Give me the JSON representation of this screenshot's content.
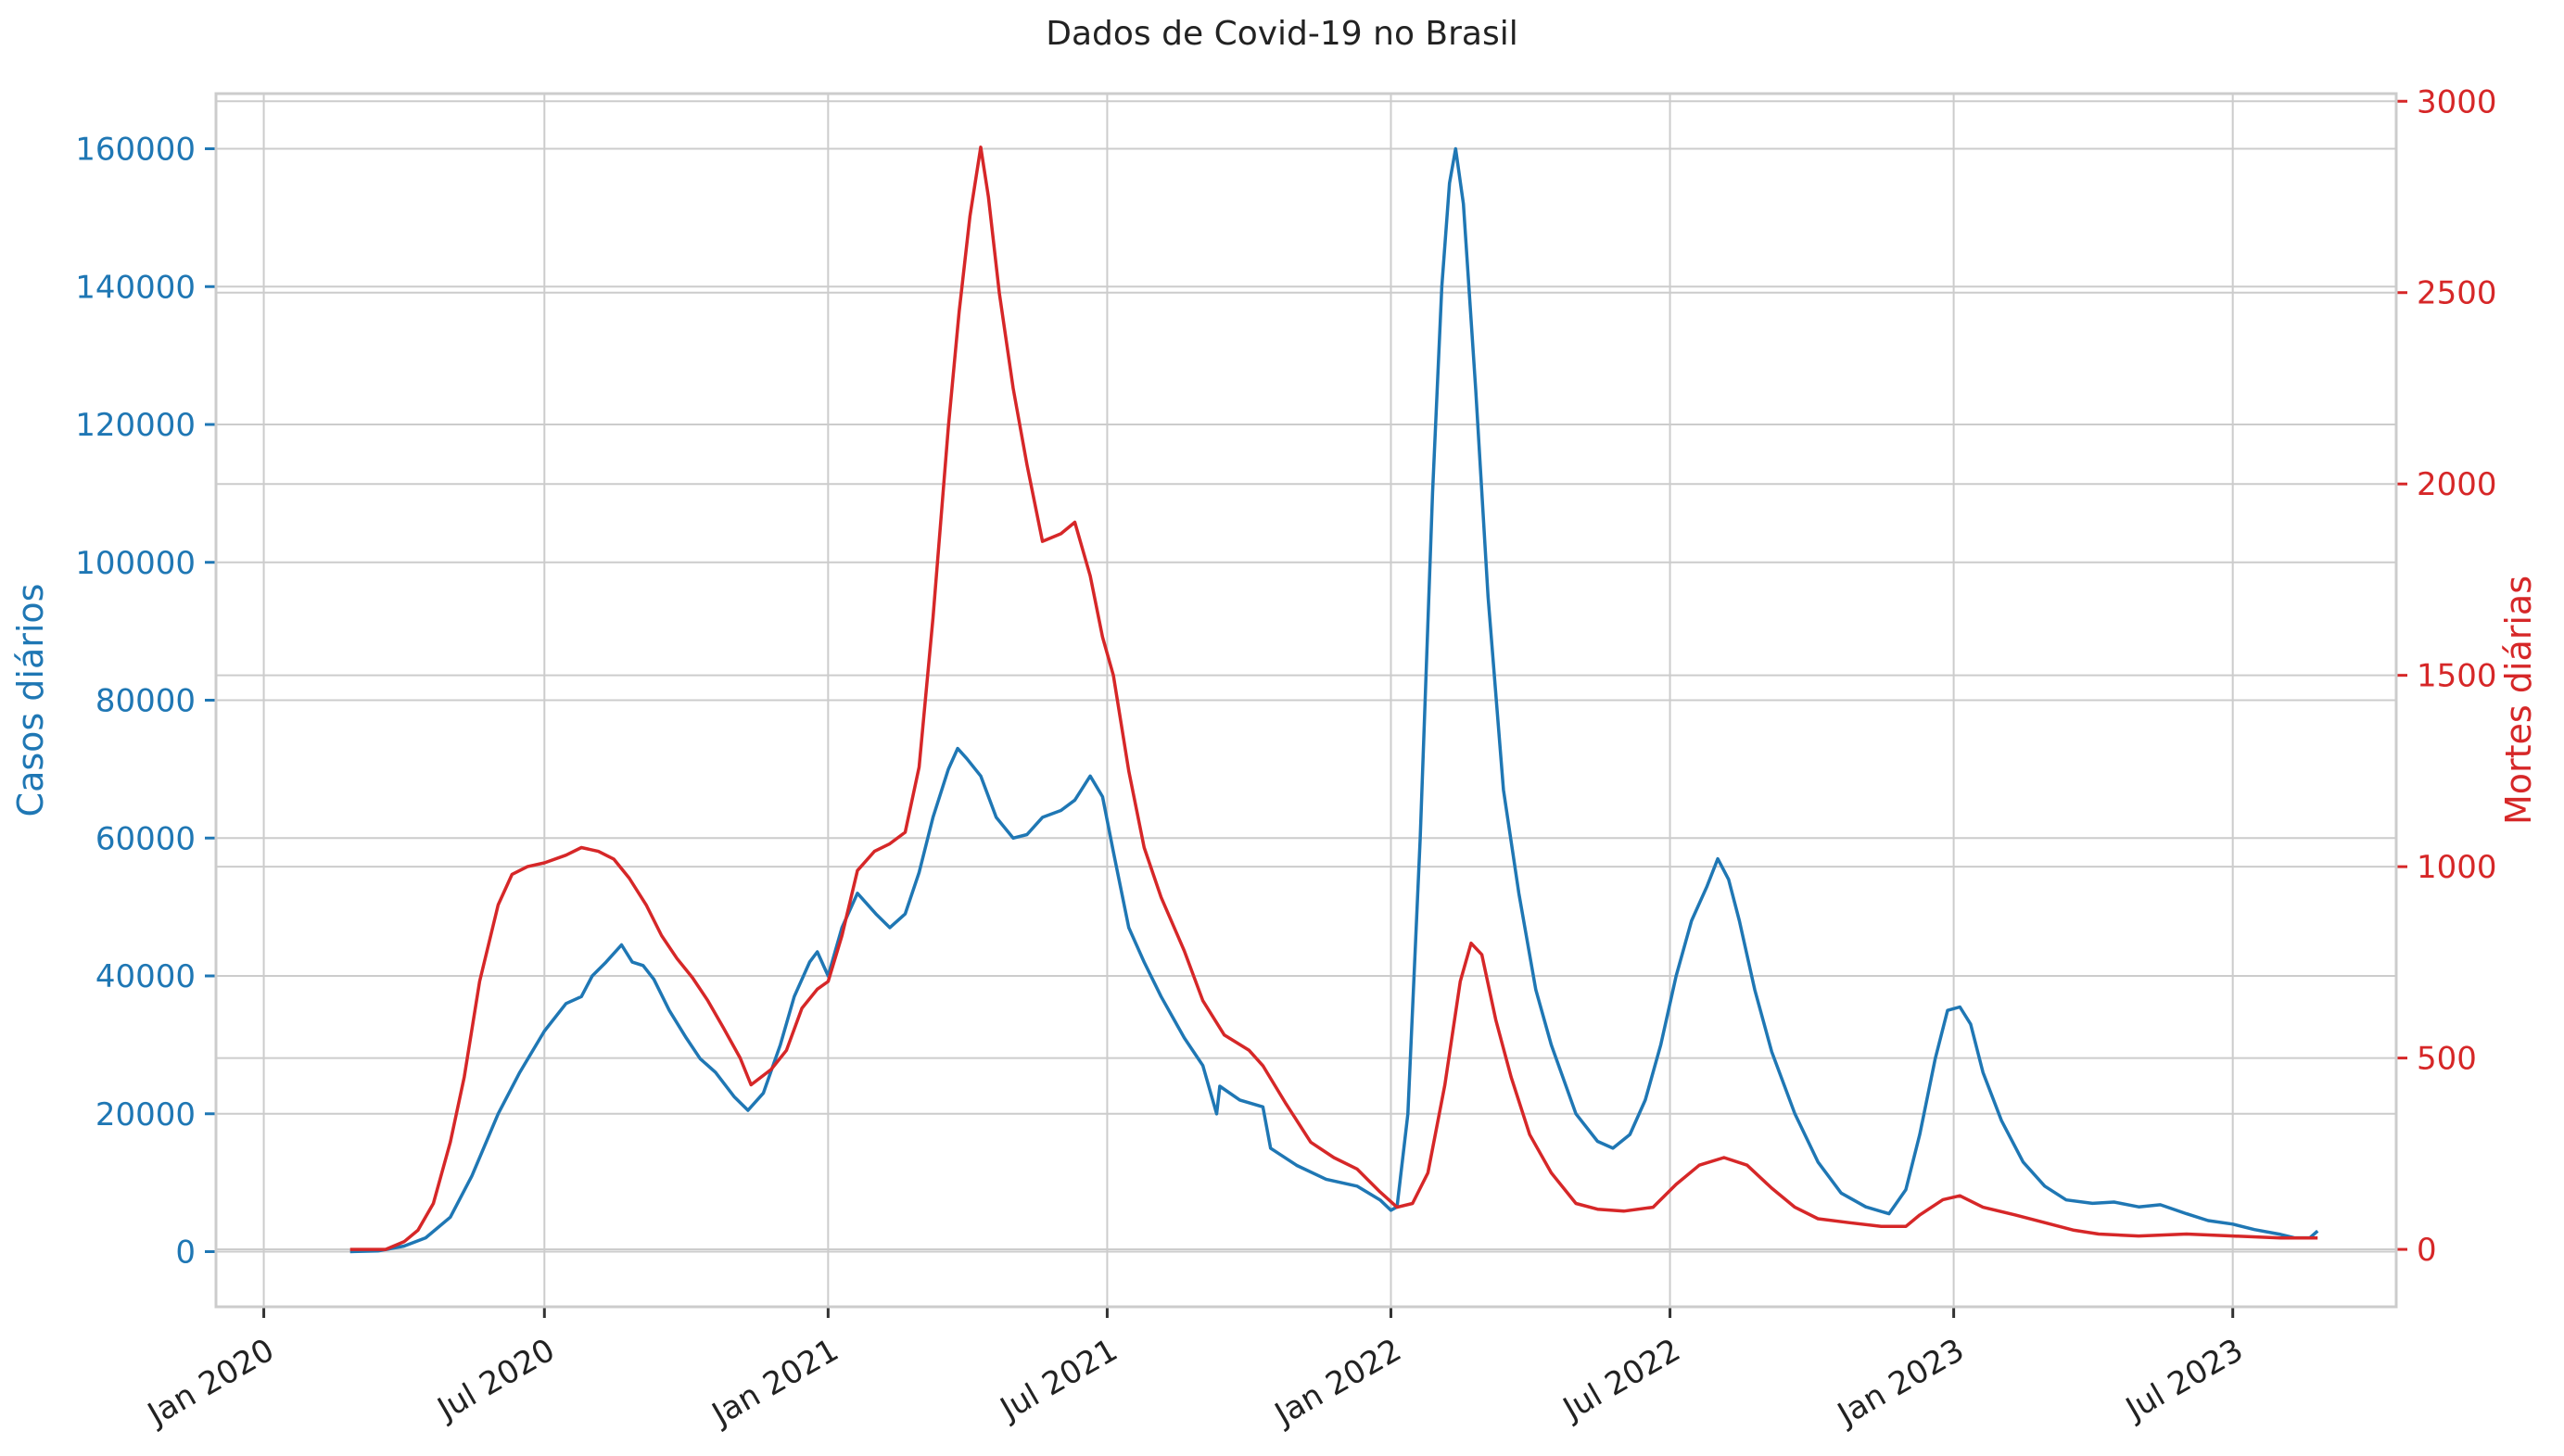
{
  "chart_data": {
    "type": "line",
    "title": "Dados de Covid-19 no Brasil",
    "x_ticks": [
      "Jan 2020",
      "Jul 2020",
      "Jan 2021",
      "Jul 2021",
      "Jan 2022",
      "Jul 2022",
      "Jan 2023",
      "Jul 2023"
    ],
    "y_left": {
      "label": "Casos diários",
      "ticks": [
        "0",
        "20000",
        "40000",
        "60000",
        "80000",
        "100000",
        "120000",
        "140000",
        "160000"
      ],
      "range": [
        -8000,
        168000
      ],
      "color": "#1f77b4"
    },
    "y_right": {
      "label": "Mortes diárias",
      "ticks": [
        "0",
        "500",
        "1000",
        "1500",
        "2000",
        "2500",
        "3000"
      ],
      "range": [
        -150,
        3020
      ],
      "color": "#d62728"
    },
    "x_range": [
      "2019-12-01",
      "2023-10-15"
    ],
    "grid": true,
    "series": [
      {
        "name": "Casos diários",
        "axis": "left",
        "color": "#1f77b4",
        "points": [
          [
            "2020-02-26",
            0
          ],
          [
            "2020-03-15",
            100
          ],
          [
            "2020-04-01",
            800
          ],
          [
            "2020-04-15",
            2000
          ],
          [
            "2020-05-01",
            5000
          ],
          [
            "2020-05-15",
            11000
          ],
          [
            "2020-06-01",
            20000
          ],
          [
            "2020-06-15",
            26000
          ],
          [
            "2020-07-01",
            32000
          ],
          [
            "2020-07-15",
            36000
          ],
          [
            "2020-07-25",
            37000
          ],
          [
            "2020-08-01",
            40000
          ],
          [
            "2020-08-10",
            42000
          ],
          [
            "2020-08-20",
            44500
          ],
          [
            "2020-08-27",
            42000
          ],
          [
            "2020-09-03",
            41500
          ],
          [
            "2020-09-10",
            39500
          ],
          [
            "2020-09-20",
            35000
          ],
          [
            "2020-10-01",
            31000
          ],
          [
            "2020-10-10",
            28000
          ],
          [
            "2020-10-20",
            26000
          ],
          [
            "2020-11-01",
            22500
          ],
          [
            "2020-11-10",
            20500
          ],
          [
            "2020-11-20",
            23000
          ],
          [
            "2020-12-01",
            30000
          ],
          [
            "2020-12-10",
            37000
          ],
          [
            "2020-12-20",
            42000
          ],
          [
            "2020-12-25",
            43500
          ],
          [
            "2021-01-01",
            40000
          ],
          [
            "2021-01-10",
            47000
          ],
          [
            "2021-01-20",
            52000
          ],
          [
            "2021-02-01",
            49000
          ],
          [
            "2021-02-10",
            47000
          ],
          [
            "2021-02-20",
            49000
          ],
          [
            "2021-03-01",
            55000
          ],
          [
            "2021-03-10",
            63000
          ],
          [
            "2021-03-20",
            70000
          ],
          [
            "2021-03-26",
            73000
          ],
          [
            "2021-04-01",
            71500
          ],
          [
            "2021-04-10",
            69000
          ],
          [
            "2021-04-20",
            63000
          ],
          [
            "2021-05-01",
            60000
          ],
          [
            "2021-05-10",
            60500
          ],
          [
            "2021-05-20",
            63000
          ],
          [
            "2021-06-01",
            64000
          ],
          [
            "2021-06-10",
            65500
          ],
          [
            "2021-06-20",
            69000
          ],
          [
            "2021-06-28",
            66000
          ],
          [
            "2021-07-05",
            58000
          ],
          [
            "2021-07-15",
            47000
          ],
          [
            "2021-07-25",
            42000
          ],
          [
            "2021-08-05",
            37000
          ],
          [
            "2021-08-20",
            31000
          ],
          [
            "2021-09-01",
            27000
          ],
          [
            "2021-09-10",
            20000
          ],
          [
            "2021-09-12",
            24000
          ],
          [
            "2021-09-25",
            22000
          ],
          [
            "2021-10-10",
            21000
          ],
          [
            "2021-10-15",
            15000
          ],
          [
            "2021-11-01",
            12500
          ],
          [
            "2021-11-20",
            10500
          ],
          [
            "2021-12-10",
            9500
          ],
          [
            "2021-12-25",
            7500
          ],
          [
            "2022-01-01",
            6000
          ],
          [
            "2022-01-05",
            6500
          ],
          [
            "2022-01-12",
            20000
          ],
          [
            "2022-01-20",
            60000
          ],
          [
            "2022-01-28",
            110000
          ],
          [
            "2022-02-03",
            140000
          ],
          [
            "2022-02-08",
            155000
          ],
          [
            "2022-02-12",
            160000
          ],
          [
            "2022-02-17",
            152000
          ],
          [
            "2022-02-25",
            125000
          ],
          [
            "2022-03-05",
            95000
          ],
          [
            "2022-03-15",
            67000
          ],
          [
            "2022-03-25",
            52000
          ],
          [
            "2022-04-05",
            38000
          ],
          [
            "2022-04-15",
            30000
          ],
          [
            "2022-05-01",
            20000
          ],
          [
            "2022-05-15",
            16000
          ],
          [
            "2022-05-25",
            15000
          ],
          [
            "2022-06-05",
            17000
          ],
          [
            "2022-06-15",
            22000
          ],
          [
            "2022-06-25",
            30000
          ],
          [
            "2022-07-05",
            40000
          ],
          [
            "2022-07-15",
            48000
          ],
          [
            "2022-07-25",
            53000
          ],
          [
            "2022-08-01",
            57000
          ],
          [
            "2022-08-08",
            54000
          ],
          [
            "2022-08-15",
            48000
          ],
          [
            "2022-08-25",
            38000
          ],
          [
            "2022-09-05",
            29000
          ],
          [
            "2022-09-20",
            20000
          ],
          [
            "2022-10-05",
            13000
          ],
          [
            "2022-10-20",
            8500
          ],
          [
            "2022-11-05",
            6500
          ],
          [
            "2022-11-20",
            5500
          ],
          [
            "2022-12-01",
            9000
          ],
          [
            "2022-12-10",
            17000
          ],
          [
            "2022-12-20",
            28000
          ],
          [
            "2022-12-28",
            35000
          ],
          [
            "2023-01-05",
            35500
          ],
          [
            "2023-01-12",
            33000
          ],
          [
            "2023-01-20",
            26000
          ],
          [
            "2023-02-01",
            19000
          ],
          [
            "2023-02-15",
            13000
          ],
          [
            "2023-03-01",
            9500
          ],
          [
            "2023-03-15",
            7500
          ],
          [
            "2023-04-01",
            7000
          ],
          [
            "2023-04-15",
            7200
          ],
          [
            "2023-05-01",
            6500
          ],
          [
            "2023-05-15",
            6800
          ],
          [
            "2023-06-01",
            5500
          ],
          [
            "2023-06-15",
            4500
          ],
          [
            "2023-07-01",
            4000
          ],
          [
            "2023-07-15",
            3200
          ],
          [
            "2023-08-01",
            2500
          ],
          [
            "2023-08-10",
            2000
          ],
          [
            "2023-08-20",
            2000
          ],
          [
            "2023-08-25",
            3000
          ]
        ]
      },
      {
        "name": "Mortes diárias",
        "axis": "right",
        "color": "#d62728",
        "points": [
          [
            "2020-02-26",
            0
          ],
          [
            "2020-03-20",
            0
          ],
          [
            "2020-04-01",
            20
          ],
          [
            "2020-04-10",
            50
          ],
          [
            "2020-04-20",
            120
          ],
          [
            "2020-05-01",
            280
          ],
          [
            "2020-05-10",
            450
          ],
          [
            "2020-05-20",
            700
          ],
          [
            "2020-06-01",
            900
          ],
          [
            "2020-06-10",
            980
          ],
          [
            "2020-06-20",
            1000
          ],
          [
            "2020-07-01",
            1010
          ],
          [
            "2020-07-15",
            1030
          ],
          [
            "2020-07-25",
            1050
          ],
          [
            "2020-08-05",
            1040
          ],
          [
            "2020-08-15",
            1020
          ],
          [
            "2020-08-25",
            970
          ],
          [
            "2020-09-05",
            900
          ],
          [
            "2020-09-15",
            820
          ],
          [
            "2020-09-25",
            760
          ],
          [
            "2020-10-05",
            710
          ],
          [
            "2020-10-15",
            650
          ],
          [
            "2020-10-25",
            580
          ],
          [
            "2020-11-05",
            500
          ],
          [
            "2020-11-12",
            430
          ],
          [
            "2020-11-25",
            470
          ],
          [
            "2020-12-05",
            520
          ],
          [
            "2020-12-15",
            630
          ],
          [
            "2020-12-25",
            680
          ],
          [
            "2021-01-01",
            700
          ],
          [
            "2021-01-10",
            820
          ],
          [
            "2021-01-20",
            990
          ],
          [
            "2021-01-31",
            1040
          ],
          [
            "2021-02-10",
            1060
          ],
          [
            "2021-02-20",
            1090
          ],
          [
            "2021-03-01",
            1260
          ],
          [
            "2021-03-10",
            1650
          ],
          [
            "2021-03-20",
            2150
          ],
          [
            "2021-03-27",
            2450
          ],
          [
            "2021-04-03",
            2700
          ],
          [
            "2021-04-10",
            2880
          ],
          [
            "2021-04-15",
            2750
          ],
          [
            "2021-04-22",
            2500
          ],
          [
            "2021-05-01",
            2250
          ],
          [
            "2021-05-10",
            2050
          ],
          [
            "2021-05-20",
            1850
          ],
          [
            "2021-06-01",
            1870
          ],
          [
            "2021-06-10",
            1900
          ],
          [
            "2021-06-20",
            1760
          ],
          [
            "2021-06-28",
            1600
          ],
          [
            "2021-07-05",
            1500
          ],
          [
            "2021-07-15",
            1250
          ],
          [
            "2021-07-25",
            1050
          ],
          [
            "2021-08-05",
            920
          ],
          [
            "2021-08-20",
            780
          ],
          [
            "2021-09-01",
            650
          ],
          [
            "2021-09-15",
            560
          ],
          [
            "2021-10-01",
            520
          ],
          [
            "2021-10-10",
            480
          ],
          [
            "2021-10-25",
            380
          ],
          [
            "2021-11-10",
            280
          ],
          [
            "2021-11-25",
            240
          ],
          [
            "2021-12-10",
            210
          ],
          [
            "2021-12-25",
            150
          ],
          [
            "2022-01-05",
            110
          ],
          [
            "2022-01-15",
            120
          ],
          [
            "2022-01-25",
            200
          ],
          [
            "2022-02-05",
            430
          ],
          [
            "2022-02-15",
            700
          ],
          [
            "2022-02-22",
            800
          ],
          [
            "2022-03-01",
            770
          ],
          [
            "2022-03-10",
            600
          ],
          [
            "2022-03-20",
            450
          ],
          [
            "2022-04-01",
            300
          ],
          [
            "2022-04-15",
            200
          ],
          [
            "2022-05-01",
            120
          ],
          [
            "2022-05-15",
            105
          ],
          [
            "2022-06-01",
            100
          ],
          [
            "2022-06-20",
            110
          ],
          [
            "2022-07-05",
            170
          ],
          [
            "2022-07-20",
            220
          ],
          [
            "2022-08-05",
            240
          ],
          [
            "2022-08-20",
            220
          ],
          [
            "2022-09-05",
            160
          ],
          [
            "2022-09-20",
            110
          ],
          [
            "2022-10-05",
            80
          ],
          [
            "2022-10-25",
            70
          ],
          [
            "2022-11-15",
            60
          ],
          [
            "2022-12-01",
            60
          ],
          [
            "2022-12-10",
            90
          ],
          [
            "2022-12-25",
            130
          ],
          [
            "2023-01-05",
            140
          ],
          [
            "2023-01-20",
            110
          ],
          [
            "2023-02-10",
            90
          ],
          [
            "2023-03-01",
            70
          ],
          [
            "2023-03-20",
            50
          ],
          [
            "2023-04-05",
            40
          ],
          [
            "2023-05-01",
            35
          ],
          [
            "2023-06-01",
            40
          ],
          [
            "2023-07-01",
            35
          ],
          [
            "2023-08-01",
            30
          ],
          [
            "2023-08-25",
            30
          ]
        ]
      }
    ]
  }
}
